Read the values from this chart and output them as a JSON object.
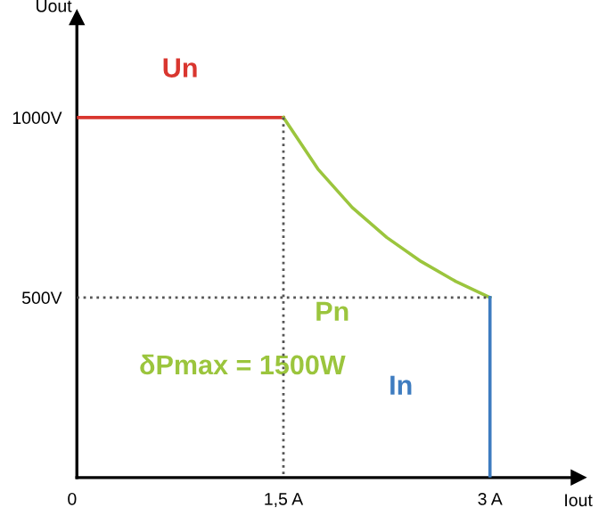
{
  "chart_data": {
    "type": "line",
    "xlabel": "Iout",
    "ylabel": "Uout",
    "xlim": [
      0,
      3.64
    ],
    "ylim": [
      0,
      1277
    ],
    "xticks": [
      {
        "value": 0,
        "label": "0"
      },
      {
        "value": 1.5,
        "label": "1,5 A"
      },
      {
        "value": 3,
        "label": "3 A"
      }
    ],
    "yticks": [
      {
        "value": 500,
        "label": "500V"
      },
      {
        "value": 1000,
        "label": "1000V"
      }
    ],
    "grid": false,
    "legend": false,
    "marker": "none",
    "series": [
      {
        "name": "Un",
        "color": "#d9362f",
        "x": [
          0,
          1.5
        ],
        "values": [
          1000,
          1000
        ]
      },
      {
        "name": "Pn",
        "color": "#9bc53d",
        "x": [
          1.5,
          1.75,
          2,
          2.25,
          2.5,
          2.75,
          3
        ],
        "values": [
          1000,
          857,
          750,
          667,
          600,
          545,
          500
        ]
      },
      {
        "name": "In",
        "color": "#3e7cc0",
        "x": [
          3,
          3
        ],
        "values": [
          500,
          0
        ]
      },
      {
        "color": "#555555",
        "line_style": "dotted",
        "x": [
          1.5,
          1.5
        ],
        "values": [
          1000,
          0
        ]
      },
      {
        "color": "#555555",
        "line_style": "dotted",
        "x": [
          0,
          3
        ],
        "values": [
          500,
          500
        ]
      }
    ],
    "annotations": [
      "δPmax = 1500W"
    ]
  }
}
